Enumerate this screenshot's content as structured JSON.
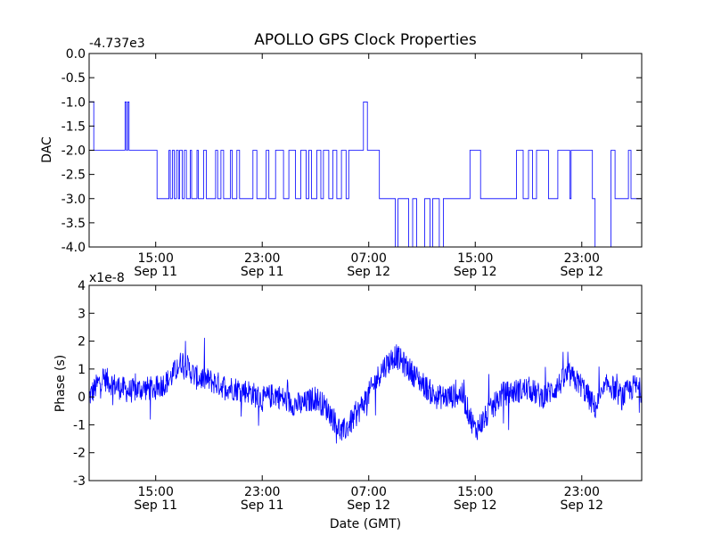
{
  "chart_data": [
    {
      "type": "line",
      "title": "APOLLO GPS Clock Properties",
      "ylabel": "DAC",
      "offset_label": "-4.737e3",
      "ylim": [
        -4.0,
        0.0
      ],
      "yticks": [
        {
          "v": 0.0,
          "label": "0.0"
        },
        {
          "v": -0.5,
          "label": "-0.5"
        },
        {
          "v": -1.0,
          "label": "-1.0"
        },
        {
          "v": -1.5,
          "label": "-1.5"
        },
        {
          "v": -2.0,
          "label": "-2.0"
        },
        {
          "v": -2.5,
          "label": "-2.5"
        },
        {
          "v": -3.0,
          "label": "-3.0"
        },
        {
          "v": -3.5,
          "label": "-3.5"
        },
        {
          "v": -4.0,
          "label": "-4.0"
        }
      ],
      "xlim_hours": [
        0,
        41.5
      ],
      "xticks": [
        {
          "t": 5,
          "time": "15:00",
          "date": "Sep 11"
        },
        {
          "t": 13,
          "time": "23:00",
          "date": "Sep 11"
        },
        {
          "t": 21,
          "time": "07:00",
          "date": "Sep 12"
        },
        {
          "t": 29,
          "time": "15:00",
          "date": "Sep 12"
        },
        {
          "t": 37,
          "time": "23:00",
          "date": "Sep 12"
        }
      ],
      "series": [
        {
          "name": "DAC",
          "color": "#0000ff",
          "x_hours": [
            0.0,
            0.35,
            0.35,
            0.75,
            0.75,
            2.7,
            2.7,
            2.8,
            2.8,
            2.9,
            2.9,
            3.0,
            3.0,
            3.1,
            3.1,
            3.2,
            3.2,
            5.1,
            5.1,
            6.0,
            6.0,
            6.1,
            6.1,
            6.25,
            6.25,
            6.4,
            6.4,
            6.55,
            6.55,
            6.7,
            6.7,
            6.8,
            6.8,
            7.0,
            7.0,
            7.15,
            7.15,
            7.3,
            7.3,
            7.6,
            7.6,
            7.7,
            7.7,
            8.1,
            8.1,
            8.2,
            8.2,
            8.6,
            8.6,
            8.8,
            8.8,
            9.5,
            9.5,
            9.65,
            9.65,
            9.9,
            9.9,
            10.1,
            10.1,
            10.6,
            10.6,
            10.75,
            10.75,
            11.1,
            11.1,
            11.3,
            11.3,
            12.3,
            12.3,
            12.6,
            12.6,
            13.3,
            13.3,
            13.5,
            13.5,
            14.0,
            14.0,
            14.6,
            14.6,
            15.0,
            15.0,
            15.5,
            15.5,
            15.9,
            15.9,
            16.3,
            16.3,
            16.5,
            16.5,
            16.7,
            16.7,
            17.1,
            17.1,
            17.4,
            17.4,
            17.6,
            17.6,
            18.0,
            18.0,
            18.3,
            18.3,
            18.6,
            18.6,
            18.95,
            18.95,
            19.3,
            19.3,
            19.5,
            19.5,
            20.6,
            20.6,
            20.9,
            20.9,
            21.8,
            21.8,
            23.0,
            23.0,
            23.2,
            23.2,
            24.0,
            24.0,
            24.3,
            24.3,
            24.6,
            24.6,
            25.2,
            25.2,
            25.6,
            25.6,
            25.8,
            25.8,
            26.3,
            26.3,
            26.6,
            26.6,
            28.6,
            28.6,
            29.4,
            29.4,
            32.1,
            32.1,
            32.6,
            32.6,
            33.0,
            33.0,
            33.3,
            33.3,
            33.6,
            33.6,
            34.5,
            34.5,
            35.2,
            35.2,
            36.1,
            36.1,
            36.2,
            36.2,
            37.8,
            37.8,
            38.0,
            38.0,
            39.2,
            39.2,
            39.5,
            39.5,
            40.5,
            40.5,
            40.7,
            40.7,
            41.5
          ],
          "y": [
            -1.0,
            -1.0,
            -2.0,
            -2.0,
            -2.0,
            -2.0,
            -1.0,
            -1.0,
            -2.0,
            -2.0,
            -1.0,
            -1.0,
            -2.0,
            -2.0,
            -2.0,
            -2.0,
            -2.0,
            -2.0,
            -3.0,
            -3.0,
            -2.0,
            -2.0,
            -3.0,
            -3.0,
            -2.0,
            -2.0,
            -3.0,
            -3.0,
            -2.0,
            -2.0,
            -3.0,
            -3.0,
            -2.0,
            -2.0,
            -3.0,
            -3.0,
            -2.0,
            -2.0,
            -3.0,
            -3.0,
            -2.0,
            -2.0,
            -3.0,
            -3.0,
            -2.0,
            -2.0,
            -3.0,
            -3.0,
            -2.0,
            -2.0,
            -3.0,
            -3.0,
            -2.0,
            -2.0,
            -3.0,
            -3.0,
            -2.0,
            -2.0,
            -3.0,
            -3.0,
            -2.0,
            -2.0,
            -3.0,
            -3.0,
            -2.0,
            -2.0,
            -3.0,
            -3.0,
            -2.0,
            -2.0,
            -3.0,
            -3.0,
            -2.0,
            -2.0,
            -3.0,
            -3.0,
            -2.0,
            -2.0,
            -3.0,
            -3.0,
            -2.0,
            -2.0,
            -3.0,
            -3.0,
            -2.0,
            -2.0,
            -3.0,
            -3.0,
            -2.0,
            -2.0,
            -3.0,
            -3.0,
            -2.0,
            -2.0,
            -3.0,
            -3.0,
            -2.0,
            -2.0,
            -3.0,
            -3.0,
            -2.0,
            -2.0,
            -3.0,
            -3.0,
            -2.0,
            -2.0,
            -3.0,
            -3.0,
            -2.0,
            -2.0,
            -1.0,
            -1.0,
            -2.0,
            -2.0,
            -3.0,
            -3.0,
            -4.0,
            -4.0,
            -3.0,
            -3.0,
            -4.0,
            -4.0,
            -3.0,
            -3.0,
            -4.0,
            -4.0,
            -3.0,
            -3.0,
            -4.0,
            -4.0,
            -3.0,
            -3.0,
            -4.0,
            -4.0,
            -3.0,
            -3.0,
            -2.0,
            -2.0,
            -3.0,
            -3.0,
            -2.0,
            -2.0,
            -3.0,
            -3.0,
            -2.0,
            -2.0,
            -3.0,
            -3.0,
            -2.0,
            -2.0,
            -3.0,
            -3.0,
            -2.0,
            -2.0,
            -3.0,
            -3.0,
            -2.0,
            -2.0,
            -3.0,
            -3.0,
            -4.0,
            -4.0,
            -2.0,
            -2.0,
            -3.0,
            -3.0,
            -2.0,
            -2.0,
            -3.0,
            -3.0
          ]
        }
      ]
    },
    {
      "type": "line",
      "ylabel": "Phase (s)",
      "xlabel": "Date (GMT)",
      "offset_label": "x1e-8",
      "ylim": [
        -3,
        4
      ],
      "yticks": [
        {
          "v": 4,
          "label": "4"
        },
        {
          "v": 3,
          "label": "3"
        },
        {
          "v": 2,
          "label": "2"
        },
        {
          "v": 1,
          "label": "1"
        },
        {
          "v": 0,
          "label": "0"
        },
        {
          "v": -1,
          "label": "-1"
        },
        {
          "v": -2,
          "label": "-2"
        },
        {
          "v": -3,
          "label": "-3"
        }
      ],
      "xlim_hours": [
        0,
        41.5
      ],
      "xticks": [
        {
          "t": 5,
          "time": "15:00",
          "date": "Sep 11"
        },
        {
          "t": 13,
          "time": "23:00",
          "date": "Sep 11"
        },
        {
          "t": 21,
          "time": "07:00",
          "date": "Sep 12"
        },
        {
          "t": 29,
          "time": "15:00",
          "date": "Sep 12"
        },
        {
          "t": 37,
          "time": "23:00",
          "date": "Sep 12"
        }
      ],
      "series": [
        {
          "name": "Phase",
          "color": "#0000ff",
          "trend_x_hours": [
            0,
            1,
            2,
            3,
            4,
            5,
            6,
            7,
            8,
            9,
            10,
            11,
            12,
            13,
            14,
            15,
            16,
            17,
            18,
            19,
            20,
            21,
            22,
            23,
            24,
            25,
            26,
            27,
            28,
            29,
            30,
            31,
            32,
            33,
            34,
            35,
            36,
            37,
            38,
            39,
            40,
            41,
            41.5
          ],
          "trend_y_1e8": [
            0.0,
            0.7,
            0.4,
            0.2,
            0.3,
            0.3,
            0.6,
            1.3,
            0.7,
            0.6,
            0.4,
            0.3,
            0.2,
            -0.1,
            0.1,
            -0.2,
            -0.3,
            0.0,
            -0.5,
            -1.3,
            -0.7,
            0.1,
            1.0,
            1.5,
            1.0,
            0.5,
            0.0,
            0.0,
            0.1,
            -1.2,
            -0.6,
            0.1,
            0.2,
            0.3,
            0.0,
            0.3,
            0.8,
            0.4,
            -0.4,
            0.5,
            0.0,
            0.4,
            0.2
          ],
          "noise_amplitude_1e8": 0.45,
          "sample_count": 1400
        }
      ]
    }
  ]
}
